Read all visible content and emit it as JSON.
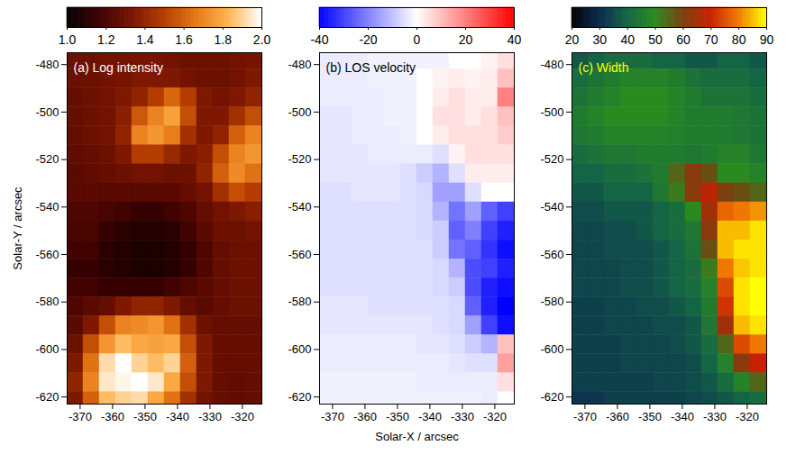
{
  "chart_data": [
    {
      "type": "heatmap",
      "title": "(a) Log intensity",
      "ylabel": "Solar-Y / arcsec",
      "xlim": [
        -374,
        -314
      ],
      "ylim": [
        -623,
        -475
      ],
      "xticks": [
        -370,
        -360,
        -350,
        -340,
        -330,
        -320
      ],
      "yticks": [
        -480,
        -500,
        -520,
        -540,
        -560,
        -580,
        -600,
        -620
      ],
      "colorbar": {
        "range": [
          1,
          2
        ],
        "ticks": [
          {
            "value": 1,
            "label": "1.0"
          },
          {
            "value": 1.2,
            "label": "1.2"
          },
          {
            "value": 1.4,
            "label": "1.4"
          },
          {
            "value": 1.6,
            "label": "1.6"
          },
          {
            "value": 1.8,
            "label": "1.8"
          },
          {
            "value": 2,
            "label": "2.0"
          }
        ]
      },
      "x": [
        -371.5,
        -366.5,
        -361.5,
        -356.5,
        -351.5,
        -346.5,
        -341.5,
        -336.5,
        -331.5,
        -326.5,
        -321.5,
        -316.5
      ],
      "y": [
        -478,
        -486,
        -494,
        -502,
        -510,
        -518,
        -526,
        -534,
        -542,
        -550,
        -558,
        -566,
        -574,
        -582,
        -590,
        -598,
        -606,
        -614,
        -622
      ],
      "values": [
        [
          1.3,
          1.3,
          1.32,
          1.32,
          1.33,
          1.33,
          1.32,
          1.3,
          1.3,
          1.3,
          1.32,
          1.33
        ],
        [
          1.3,
          1.3,
          1.32,
          1.33,
          1.35,
          1.35,
          1.35,
          1.32,
          1.3,
          1.3,
          1.32,
          1.35
        ],
        [
          1.28,
          1.3,
          1.32,
          1.35,
          1.4,
          1.5,
          1.62,
          1.5,
          1.35,
          1.32,
          1.35,
          1.4
        ],
        [
          1.28,
          1.3,
          1.32,
          1.38,
          1.58,
          1.7,
          1.78,
          1.55,
          1.35,
          1.35,
          1.45,
          1.55
        ],
        [
          1.28,
          1.3,
          1.32,
          1.4,
          1.7,
          1.75,
          1.68,
          1.45,
          1.35,
          1.4,
          1.6,
          1.7
        ],
        [
          1.27,
          1.28,
          1.3,
          1.35,
          1.5,
          1.5,
          1.42,
          1.35,
          1.38,
          1.55,
          1.7,
          1.75
        ],
        [
          1.25,
          1.27,
          1.28,
          1.3,
          1.32,
          1.32,
          1.3,
          1.3,
          1.4,
          1.6,
          1.72,
          1.65
        ],
        [
          1.25,
          1.25,
          1.25,
          1.25,
          1.25,
          1.25,
          1.25,
          1.28,
          1.32,
          1.45,
          1.55,
          1.5
        ],
        [
          1.22,
          1.22,
          1.2,
          1.18,
          1.15,
          1.15,
          1.18,
          1.22,
          1.28,
          1.32,
          1.35,
          1.38
        ],
        [
          1.2,
          1.2,
          1.15,
          1.12,
          1.1,
          1.1,
          1.12,
          1.18,
          1.25,
          1.3,
          1.3,
          1.32
        ],
        [
          1.18,
          1.18,
          1.12,
          1.1,
          1.08,
          1.08,
          1.1,
          1.15,
          1.22,
          1.28,
          1.3,
          1.3
        ],
        [
          1.15,
          1.15,
          1.12,
          1.1,
          1.08,
          1.08,
          1.1,
          1.15,
          1.22,
          1.28,
          1.3,
          1.3
        ],
        [
          1.18,
          1.18,
          1.15,
          1.15,
          1.15,
          1.15,
          1.18,
          1.22,
          1.25,
          1.28,
          1.3,
          1.3
        ],
        [
          1.22,
          1.25,
          1.28,
          1.35,
          1.4,
          1.4,
          1.35,
          1.28,
          1.25,
          1.28,
          1.3,
          1.3
        ],
        [
          1.25,
          1.35,
          1.55,
          1.7,
          1.72,
          1.75,
          1.65,
          1.45,
          1.3,
          1.28,
          1.28,
          1.28
        ],
        [
          1.3,
          1.55,
          1.75,
          1.85,
          1.8,
          1.78,
          1.8,
          1.55,
          1.35,
          1.28,
          1.28,
          1.28
        ],
        [
          1.35,
          1.65,
          1.92,
          2.0,
          1.9,
          1.85,
          1.9,
          1.6,
          1.35,
          1.28,
          1.28,
          1.28
        ],
        [
          1.4,
          1.7,
          1.95,
          1.98,
          2.0,
          1.95,
          1.8,
          1.55,
          1.35,
          1.28,
          1.27,
          1.28
        ],
        [
          1.35,
          1.6,
          1.85,
          1.9,
          1.92,
          1.8,
          1.65,
          1.45,
          1.32,
          1.28,
          1.27,
          1.28
        ]
      ]
    },
    {
      "type": "heatmap",
      "title": "(b) LOS velocity",
      "xlabel": "Solar-X / arcsec",
      "xlim": [
        -374,
        -314
      ],
      "ylim": [
        -623,
        -475
      ],
      "xticks": [
        -370,
        -360,
        -350,
        -340,
        -330,
        -320
      ],
      "yticks": [
        -480,
        -500,
        -520,
        -540,
        -560,
        -580,
        -600,
        -620
      ],
      "colorbar": {
        "range": [
          -40,
          40
        ],
        "ticks": [
          -40,
          -20,
          0,
          20,
          40
        ]
      },
      "x": [
        -371.5,
        -366.5,
        -361.5,
        -356.5,
        -351.5,
        -346.5,
        -341.5,
        -336.5,
        -331.5,
        -326.5,
        -321.5,
        -316.5
      ],
      "y": [
        -478,
        -486,
        -494,
        -502,
        -510,
        -518,
        -526,
        -534,
        -542,
        -550,
        -558,
        -566,
        -574,
        -582,
        -590,
        -598,
        -606,
        -614,
        -622
      ],
      "values": [
        [
          -3,
          -3,
          -3,
          -2,
          -2,
          -2,
          -2,
          -2,
          0,
          0,
          2,
          5
        ],
        [
          -3,
          -3,
          -3,
          -2,
          -2,
          -2,
          0,
          2,
          3,
          2,
          3,
          10
        ],
        [
          -3,
          -3,
          -3,
          -3,
          -2,
          -2,
          0,
          3,
          5,
          3,
          3,
          20
        ],
        [
          -4,
          -4,
          -3,
          -3,
          -2,
          -2,
          0,
          5,
          5,
          3,
          5,
          10
        ],
        [
          -4,
          -4,
          -3,
          -3,
          -3,
          -2,
          0,
          3,
          5,
          5,
          5,
          8
        ],
        [
          -4,
          -4,
          -4,
          -3,
          -3,
          -3,
          -3,
          -5,
          2,
          5,
          5,
          5
        ],
        [
          -4,
          -4,
          -4,
          -4,
          -4,
          -5,
          -8,
          -12,
          -5,
          3,
          3,
          3
        ],
        [
          -5,
          -5,
          -4,
          -4,
          -4,
          -5,
          -6,
          -15,
          -15,
          -5,
          0,
          0
        ],
        [
          -5,
          -5,
          -5,
          -5,
          -5,
          -5,
          -6,
          -12,
          -22,
          -15,
          -25,
          -30
        ],
        [
          -5,
          -5,
          -5,
          -5,
          -5,
          -5,
          -6,
          -8,
          -25,
          -20,
          -30,
          -35
        ],
        [
          -5,
          -5,
          -5,
          -5,
          -5,
          -5,
          -5,
          -8,
          -22,
          -25,
          -32,
          -38
        ],
        [
          -5,
          -5,
          -5,
          -5,
          -5,
          -5,
          -5,
          -6,
          -12,
          -28,
          -30,
          -35
        ],
        [
          -5,
          -5,
          -5,
          -5,
          -5,
          -5,
          -5,
          -6,
          -8,
          -28,
          -35,
          -38
        ],
        [
          -4,
          -4,
          -4,
          -5,
          -5,
          -5,
          -5,
          -5,
          -6,
          -25,
          -35,
          -40
        ],
        [
          -4,
          -4,
          -4,
          -4,
          -4,
          -4,
          -4,
          -5,
          -6,
          -15,
          -30,
          -38
        ],
        [
          -3,
          -3,
          -3,
          -3,
          -3,
          -3,
          -4,
          -4,
          -5,
          -8,
          -12,
          10
        ],
        [
          -3,
          -3,
          -3,
          -3,
          -3,
          -3,
          -3,
          -3,
          -4,
          -5,
          -5,
          15
        ],
        [
          -2,
          -2,
          -2,
          -2,
          -2,
          -2,
          -3,
          -3,
          -3,
          -3,
          -3,
          5
        ],
        [
          -2,
          -2,
          -2,
          -2,
          -2,
          -2,
          -2,
          -2,
          -2,
          -2,
          -3,
          0
        ]
      ]
    },
    {
      "type": "heatmap",
      "title": "(c) Width",
      "xlim": [
        -374,
        -314
      ],
      "ylim": [
        -623,
        -475
      ],
      "xticks": [
        -370,
        -360,
        -350,
        -340,
        -330,
        -320
      ],
      "yticks": [
        -480,
        -500,
        -520,
        -540,
        -560,
        -580,
        -600,
        -620
      ],
      "colorbar": {
        "range": [
          20,
          90
        ],
        "ticks": [
          20,
          30,
          40,
          50,
          60,
          70,
          80,
          90
        ]
      },
      "x": [
        -371.5,
        -366.5,
        -361.5,
        -356.5,
        -351.5,
        -346.5,
        -341.5,
        -336.5,
        -331.5,
        -326.5,
        -321.5,
        -316.5
      ],
      "y": [
        -478,
        -486,
        -494,
        -502,
        -510,
        -518,
        -526,
        -534,
        -542,
        -550,
        -558,
        -566,
        -574,
        -582,
        -590,
        -598,
        -606,
        -614,
        -622
      ],
      "values": [
        [
          38,
          40,
          42,
          42,
          42,
          40,
          40,
          38,
          38,
          40,
          40,
          38
        ],
        [
          42,
          44,
          46,
          48,
          48,
          48,
          46,
          44,
          42,
          42,
          42,
          40
        ],
        [
          44,
          46,
          48,
          50,
          50,
          50,
          48,
          46,
          44,
          44,
          44,
          42
        ],
        [
          46,
          48,
          50,
          50,
          50,
          50,
          48,
          46,
          46,
          46,
          45,
          44
        ],
        [
          45,
          46,
          48,
          48,
          48,
          48,
          47,
          46,
          46,
          46,
          45,
          44
        ],
        [
          42,
          44,
          45,
          45,
          46,
          46,
          46,
          45,
          46,
          48,
          48,
          45
        ],
        [
          40,
          40,
          42,
          42,
          44,
          46,
          55,
          62,
          58,
          50,
          50,
          48
        ],
        [
          38,
          38,
          40,
          40,
          40,
          45,
          52,
          62,
          68,
          60,
          58,
          55
        ],
        [
          36,
          36,
          38,
          38,
          38,
          40,
          42,
          50,
          65,
          78,
          80,
          82
        ],
        [
          35,
          35,
          36,
          36,
          38,
          40,
          42,
          45,
          62,
          85,
          85,
          88
        ],
        [
          35,
          35,
          36,
          36,
          36,
          38,
          40,
          44,
          58,
          85,
          88,
          88
        ],
        [
          35,
          35,
          35,
          36,
          36,
          38,
          40,
          42,
          52,
          80,
          86,
          88
        ],
        [
          35,
          35,
          35,
          36,
          36,
          38,
          40,
          42,
          48,
          75,
          88,
          90
        ],
        [
          34,
          34,
          35,
          35,
          36,
          36,
          38,
          40,
          46,
          72,
          88,
          90
        ],
        [
          34,
          34,
          35,
          35,
          35,
          36,
          36,
          38,
          45,
          65,
          85,
          88
        ],
        [
          34,
          34,
          34,
          35,
          35,
          35,
          36,
          38,
          42,
          55,
          75,
          80
        ],
        [
          34,
          34,
          34,
          35,
          35,
          35,
          35,
          36,
          40,
          48,
          62,
          70
        ],
        [
          34,
          34,
          34,
          34,
          34,
          35,
          35,
          36,
          38,
          42,
          48,
          55
        ],
        [
          32,
          32,
          34,
          34,
          34,
          34,
          34,
          35,
          36,
          38,
          40,
          42
        ]
      ]
    }
  ]
}
